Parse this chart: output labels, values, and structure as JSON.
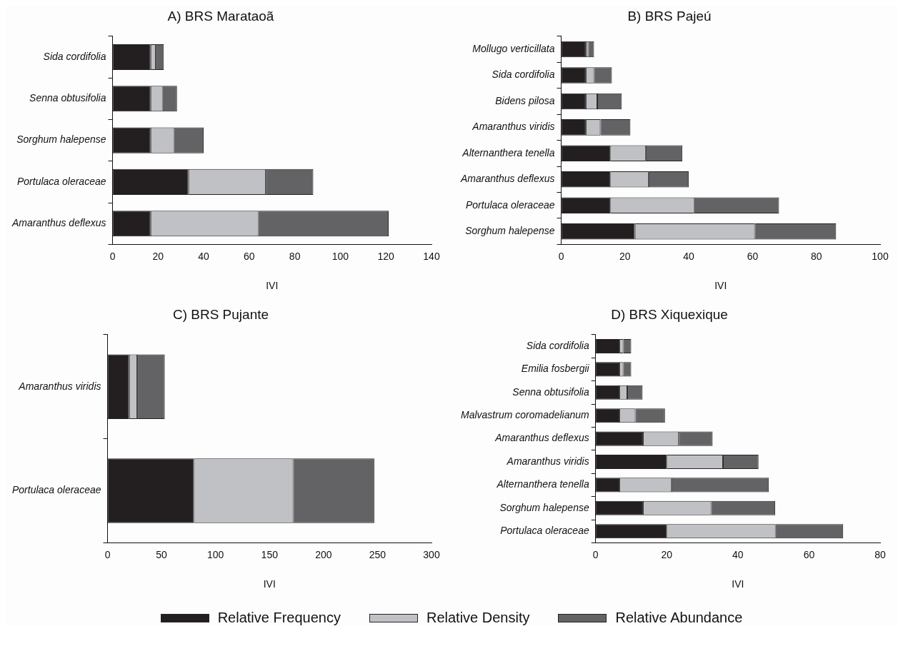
{
  "chart_data": [
    {
      "type": "bar",
      "orientation": "horizontal",
      "stacked": true,
      "title": "A) BRS Marataoã",
      "xlabel": "IVI",
      "xlim": [
        0,
        140
      ],
      "xticks": [
        0,
        20,
        40,
        60,
        80,
        100,
        120,
        140
      ],
      "grid": false,
      "legend": "bottom",
      "categories": [
        "Sida cordifolia",
        "Senna obtusifolia",
        "Sorghum halepense",
        "Portulaca oleraceae",
        "Amaranthus deflexus"
      ],
      "series": [
        {
          "name": "Relative Frequency",
          "color": "#231f20",
          "values": [
            16.7,
            16.7,
            16.7,
            33.3,
            16.7
          ]
        },
        {
          "name": "Relative Density",
          "color": "#c0c1c4",
          "values": [
            2.3,
            5.3,
            10.3,
            34,
            47.3
          ]
        },
        {
          "name": "Relative Abundance",
          "color": "#636365",
          "values": [
            3.5,
            6.3,
            13,
            20.8,
            57.2
          ]
        }
      ]
    },
    {
      "type": "bar",
      "orientation": "horizontal",
      "stacked": true,
      "title": "B) BRS Pajeú",
      "xlabel": "IVI",
      "xlim": [
        0,
        100
      ],
      "xticks": [
        0,
        20,
        40,
        60,
        80,
        100
      ],
      "grid": false,
      "categories": [
        "Mollugo verticillata",
        "Sida cordifolia",
        "Bidens pilosa",
        "Amaranthus viridis",
        "Alternanthera tenella",
        "Amaranthus deflexus",
        "Portulaca oleraceae",
        "Sorghum halepense"
      ],
      "series": [
        {
          "color": "#231f20",
          "values": [
            7.7,
            7.7,
            7.7,
            7.7,
            15.4,
            15.4,
            15.4,
            23.1
          ]
        },
        {
          "color": "#c0c1c4",
          "values": [
            0.8,
            2.6,
            3.6,
            4.6,
            11.1,
            12,
            26.3,
            37.6
          ]
        },
        {
          "color": "#636365",
          "values": [
            1.8,
            5.6,
            7.7,
            9.4,
            11.5,
            12.6,
            26.6,
            25.5
          ]
        }
      ]
    },
    {
      "type": "bar",
      "orientation": "horizontal",
      "stacked": true,
      "title": "C) BRS Pujante",
      "xlabel": "IVI",
      "xlim": [
        0,
        300
      ],
      "xticks": [
        0,
        50,
        100,
        150,
        200,
        250,
        300
      ],
      "grid": false,
      "categories": [
        "Amaranthus viridis",
        "Portulaca oleraceae"
      ],
      "series": [
        {
          "color": "#231f20",
          "values": [
            20,
            80
          ]
        },
        {
          "color": "#c0c1c4",
          "values": [
            7.5,
            92
          ]
        },
        {
          "color": "#636365",
          "values": [
            25.5,
            75
          ]
        }
      ]
    },
    {
      "type": "bar",
      "orientation": "horizontal",
      "stacked": true,
      "title": "D) BRS Xiquexique",
      "xlabel": "IVI",
      "xlim": [
        0,
        80
      ],
      "xticks": [
        0,
        20,
        40,
        60,
        80
      ],
      "grid": false,
      "categories": [
        "Sida cordifolia",
        "Emilia fosbergii",
        "Senna obtusifolia",
        "Malvastrum coromadelianum",
        "Amaranthus deflexus",
        "Amaranthus viridis",
        "Alternanthera tenella",
        "Sorghum halepense",
        "Portulaca oleraceae"
      ],
      "series": [
        {
          "color": "#231f20",
          "values": [
            6.7,
            6.7,
            6.7,
            6.7,
            13.3,
            20,
            6.7,
            13.3,
            20
          ]
        },
        {
          "color": "#c0c1c4",
          "values": [
            1.1,
            1.1,
            2.2,
            4.5,
            10.1,
            15.8,
            14.6,
            19.2,
            30.6
          ]
        },
        {
          "color": "#636365",
          "values": [
            2.2,
            2.2,
            4.3,
            8.3,
            9.5,
            10,
            27.4,
            18,
            19
          ]
        }
      ]
    }
  ]
}
